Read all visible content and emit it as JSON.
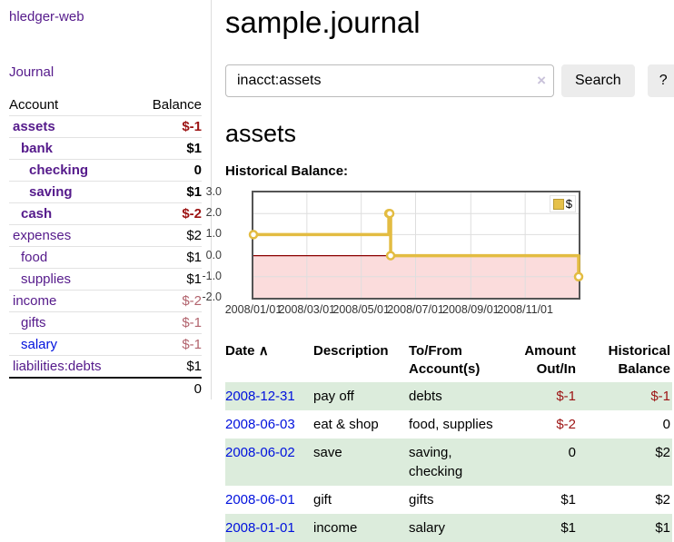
{
  "app": {
    "brand": "hledger-web",
    "nav_journal": "Journal"
  },
  "sidebar": {
    "accounts_header": {
      "account": "Account",
      "balance": "Balance"
    },
    "accounts": [
      {
        "name": "assets",
        "balance": "$-1",
        "level": 1,
        "bold": true,
        "neg": "strong",
        "link_style": "visited"
      },
      {
        "name": "bank",
        "balance": "$1",
        "level": 2,
        "bold": true,
        "neg": "none",
        "link_style": "visited"
      },
      {
        "name": "checking",
        "balance": "0",
        "level": 3,
        "bold": true,
        "neg": "none",
        "link_style": "visited"
      },
      {
        "name": "saving",
        "balance": "$1",
        "level": 3,
        "bold": true,
        "neg": "none",
        "link_style": "visited"
      },
      {
        "name": "cash",
        "balance": "$-2",
        "level": 2,
        "bold": true,
        "neg": "strong",
        "link_style": "visited"
      },
      {
        "name": "expenses",
        "balance": "$2",
        "level": 1,
        "bold": false,
        "neg": "none",
        "link_style": "visited"
      },
      {
        "name": "food",
        "balance": "$1",
        "level": 2,
        "bold": false,
        "neg": "none",
        "link_style": "visited"
      },
      {
        "name": "supplies",
        "balance": "$1",
        "level": 2,
        "bold": false,
        "neg": "none",
        "link_style": "visited"
      },
      {
        "name": "income",
        "balance": "$-2",
        "level": 1,
        "bold": false,
        "neg": "soft",
        "link_style": "visited"
      },
      {
        "name": "gifts",
        "balance": "$-1",
        "level": 2,
        "bold": false,
        "neg": "soft",
        "link_style": "visited"
      },
      {
        "name": "salary",
        "balance": "$-1",
        "level": 2,
        "bold": false,
        "neg": "soft",
        "link_style": "unvisited"
      },
      {
        "name": "liabilities:debts",
        "balance": "$1",
        "level": 1,
        "bold": false,
        "neg": "none",
        "link_style": "visited"
      }
    ],
    "total": "0"
  },
  "main": {
    "title": "sample.journal",
    "search": {
      "value": "inacct:assets",
      "clear_icon": "×",
      "button": "Search",
      "help_button": "?"
    },
    "section_title": "assets"
  },
  "chart_data": {
    "type": "line",
    "step": true,
    "title": "Historical Balance:",
    "series": [
      {
        "name": "$",
        "color": "#e3bc42",
        "points": [
          [
            "2008/01/01",
            1
          ],
          [
            "2008/06/01",
            2
          ],
          [
            "2008/06/02",
            2
          ],
          [
            "2008/06/03",
            0
          ],
          [
            "2008/12/31",
            -1
          ]
        ]
      }
    ],
    "x_range": [
      "2008/01/01",
      "2008/12/31"
    ],
    "x_ticks": [
      "2008/01/01",
      "2008/03/01",
      "2008/05/01",
      "2008/07/01",
      "2008/09/01",
      "2008/11/01"
    ],
    "y_ticks": [
      {
        "label": "3.0",
        "value": 3
      },
      {
        "label": "2.0",
        "value": 2
      },
      {
        "label": "1.0",
        "value": 1
      },
      {
        "label": "0.0",
        "value": 0
      },
      {
        "label": "-1.0",
        "value": -1
      },
      {
        "label": "-2.0",
        "value": -2
      }
    ],
    "ylim": [
      -2,
      3
    ],
    "grid": true,
    "negative_region_fill": "#fbdcdc",
    "zero_line_color": "#8b0000",
    "legend": {
      "label": "$",
      "position": "top-right"
    }
  },
  "table": {
    "headers": {
      "date": "Date",
      "sort_icon": "∧",
      "description": "Description",
      "accounts": "To/From Account(s)",
      "amount": "Amount Out/In",
      "balance": "Historical Balance"
    },
    "rows": [
      {
        "date": "2008-12-31",
        "description": "pay off",
        "accounts": "debts",
        "amount": "$-1",
        "amount_neg": true,
        "balance": "$-1",
        "balance_neg": true
      },
      {
        "date": "2008-06-03",
        "description": "eat & shop",
        "accounts": "food, supplies",
        "amount": "$-2",
        "amount_neg": true,
        "balance": "0",
        "balance_neg": false
      },
      {
        "date": "2008-06-02",
        "description": "save",
        "accounts": "saving, checking",
        "amount": "0",
        "amount_neg": false,
        "balance": "$2",
        "balance_neg": false
      },
      {
        "date": "2008-06-01",
        "description": "gift",
        "accounts": "gifts",
        "amount": "$1",
        "amount_neg": false,
        "balance": "$2",
        "balance_neg": false
      },
      {
        "date": "2008-01-01",
        "description": "income",
        "accounts": "salary",
        "amount": "$1",
        "amount_neg": false,
        "balance": "$1",
        "balance_neg": false
      }
    ]
  },
  "colors": {
    "link_visited": "#551a8b",
    "link_unvisited": "#0011dd",
    "negative_strong": "#9c1313",
    "negative_soft": "#b2636d",
    "row_shaded": "#dcecdc",
    "series_gold": "#e3bc42",
    "chart_border": "#545454",
    "gridline": "#dedede",
    "negative_area": "#fbdcdc",
    "zero_line": "#8b0000"
  }
}
